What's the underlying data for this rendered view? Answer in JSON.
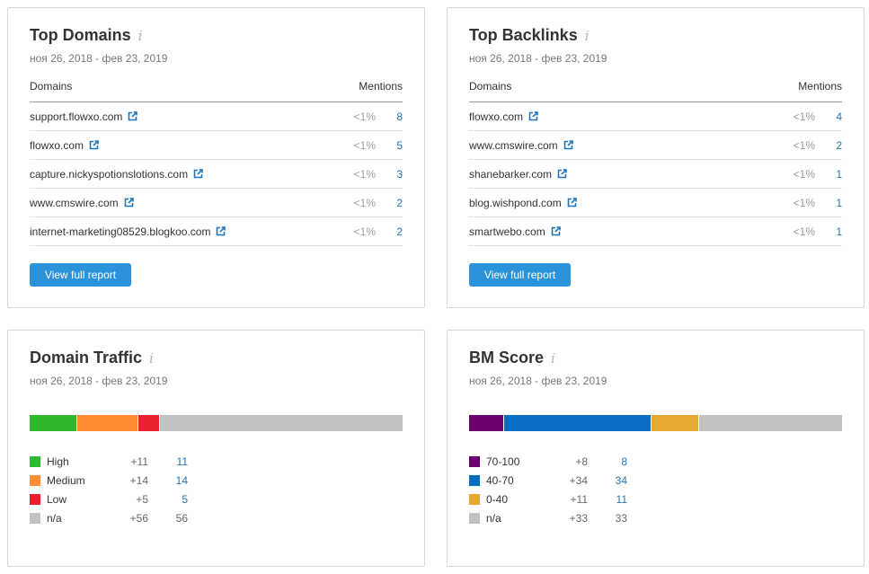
{
  "top_domains": {
    "title": "Top Domains",
    "info": "i",
    "date": "ноя 26, 2018 - фев 23, 2019",
    "col_domains": "Domains",
    "col_mentions": "Mentions",
    "rows": [
      {
        "name": "support.flowxo.com",
        "pct": "<1%",
        "count": "8"
      },
      {
        "name": "flowxo.com",
        "pct": "<1%",
        "count": "5"
      },
      {
        "name": "capture.nickyspotionslotions.com",
        "pct": "<1%",
        "count": "3"
      },
      {
        "name": "www.cmswire.com",
        "pct": "<1%",
        "count": "2"
      },
      {
        "name": "internet-marketing08529.blogkoo.com",
        "pct": "<1%",
        "count": "2"
      }
    ],
    "button": "View full report"
  },
  "top_backlinks": {
    "title": "Top Backlinks",
    "info": "i",
    "date": "ноя 26, 2018 - фев 23, 2019",
    "col_domains": "Domains",
    "col_mentions": "Mentions",
    "rows": [
      {
        "name": "flowxo.com",
        "pct": "<1%",
        "count": "4"
      },
      {
        "name": "www.cmswire.com",
        "pct": "<1%",
        "count": "2"
      },
      {
        "name": "shanebarker.com",
        "pct": "<1%",
        "count": "1"
      },
      {
        "name": "blog.wishpond.com",
        "pct": "<1%",
        "count": "1"
      },
      {
        "name": "smartwebo.com",
        "pct": "<1%",
        "count": "1"
      }
    ],
    "button": "View full report"
  },
  "domain_traffic": {
    "title": "Domain Traffic",
    "info": "i",
    "date": "ноя 26, 2018 - фев 23, 2019",
    "items": [
      {
        "label": "High",
        "delta": "+11",
        "value": "11",
        "n": 11,
        "color": "#2eb82e",
        "link": true
      },
      {
        "label": "Medium",
        "delta": "+14",
        "value": "14",
        "n": 14,
        "color": "#ff8c33",
        "link": true
      },
      {
        "label": "Low",
        "delta": "+5",
        "value": "5",
        "n": 5,
        "color": "#e8232e",
        "link": true
      },
      {
        "label": "n/a",
        "delta": "+56",
        "value": "56",
        "n": 56,
        "color": "#c2c2c2",
        "link": false
      }
    ]
  },
  "bm_score": {
    "title": "BM Score",
    "info": "i",
    "date": "ноя 26, 2018 - фев 23, 2019",
    "items": [
      {
        "label": "70-100",
        "delta": "+8",
        "value": "8",
        "n": 8,
        "color": "#6b0070",
        "link": true
      },
      {
        "label": "40-70",
        "delta": "+34",
        "value": "34",
        "n": 34,
        "color": "#0a6fc2",
        "link": true
      },
      {
        "label": "0-40",
        "delta": "+11",
        "value": "11",
        "n": 11,
        "color": "#e6a82e",
        "link": true
      },
      {
        "label": "n/a",
        "delta": "+33",
        "value": "33",
        "n": 33,
        "color": "#c2c2c2",
        "link": false
      }
    ]
  }
}
